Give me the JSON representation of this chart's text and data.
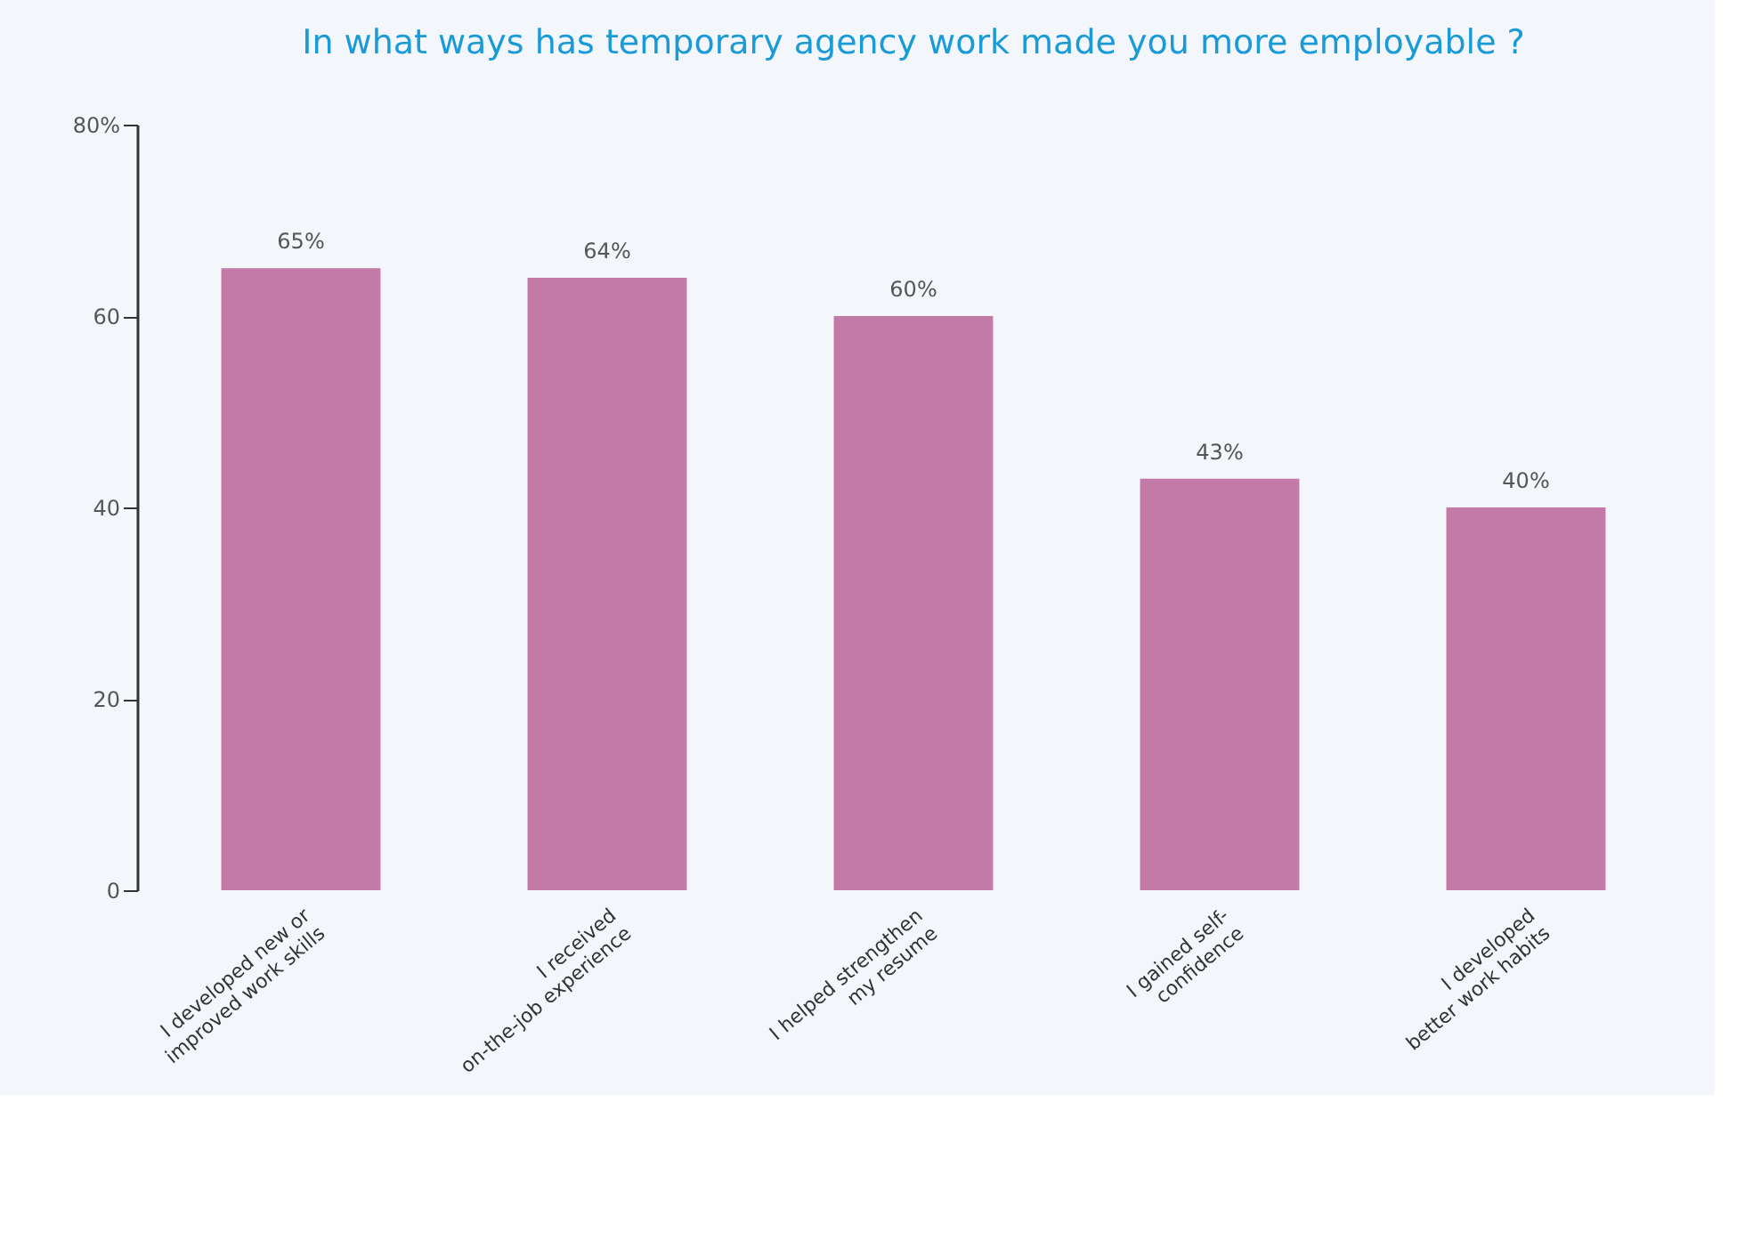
{
  "chart_data": {
    "type": "bar",
    "title": "In what ways has temporary agency work made you more employable ?",
    "categories": [
      "I developed new or\nimproved work skills",
      "I received\non-the-job experience",
      "I helped strengthen\nmy resume",
      "I gained self-\nconfidence",
      "I developed\nbetter work habits"
    ],
    "values": [
      65,
      64,
      60,
      43,
      40
    ],
    "value_labels": [
      "65%",
      "64%",
      "60%",
      "43%",
      "40%"
    ],
    "color": "#c47aa7",
    "ylim": [
      0,
      80
    ],
    "yticks": [
      0,
      20,
      40,
      60,
      {
        "value": 80,
        "label": "80%"
      }
    ],
    "grid": false
  }
}
